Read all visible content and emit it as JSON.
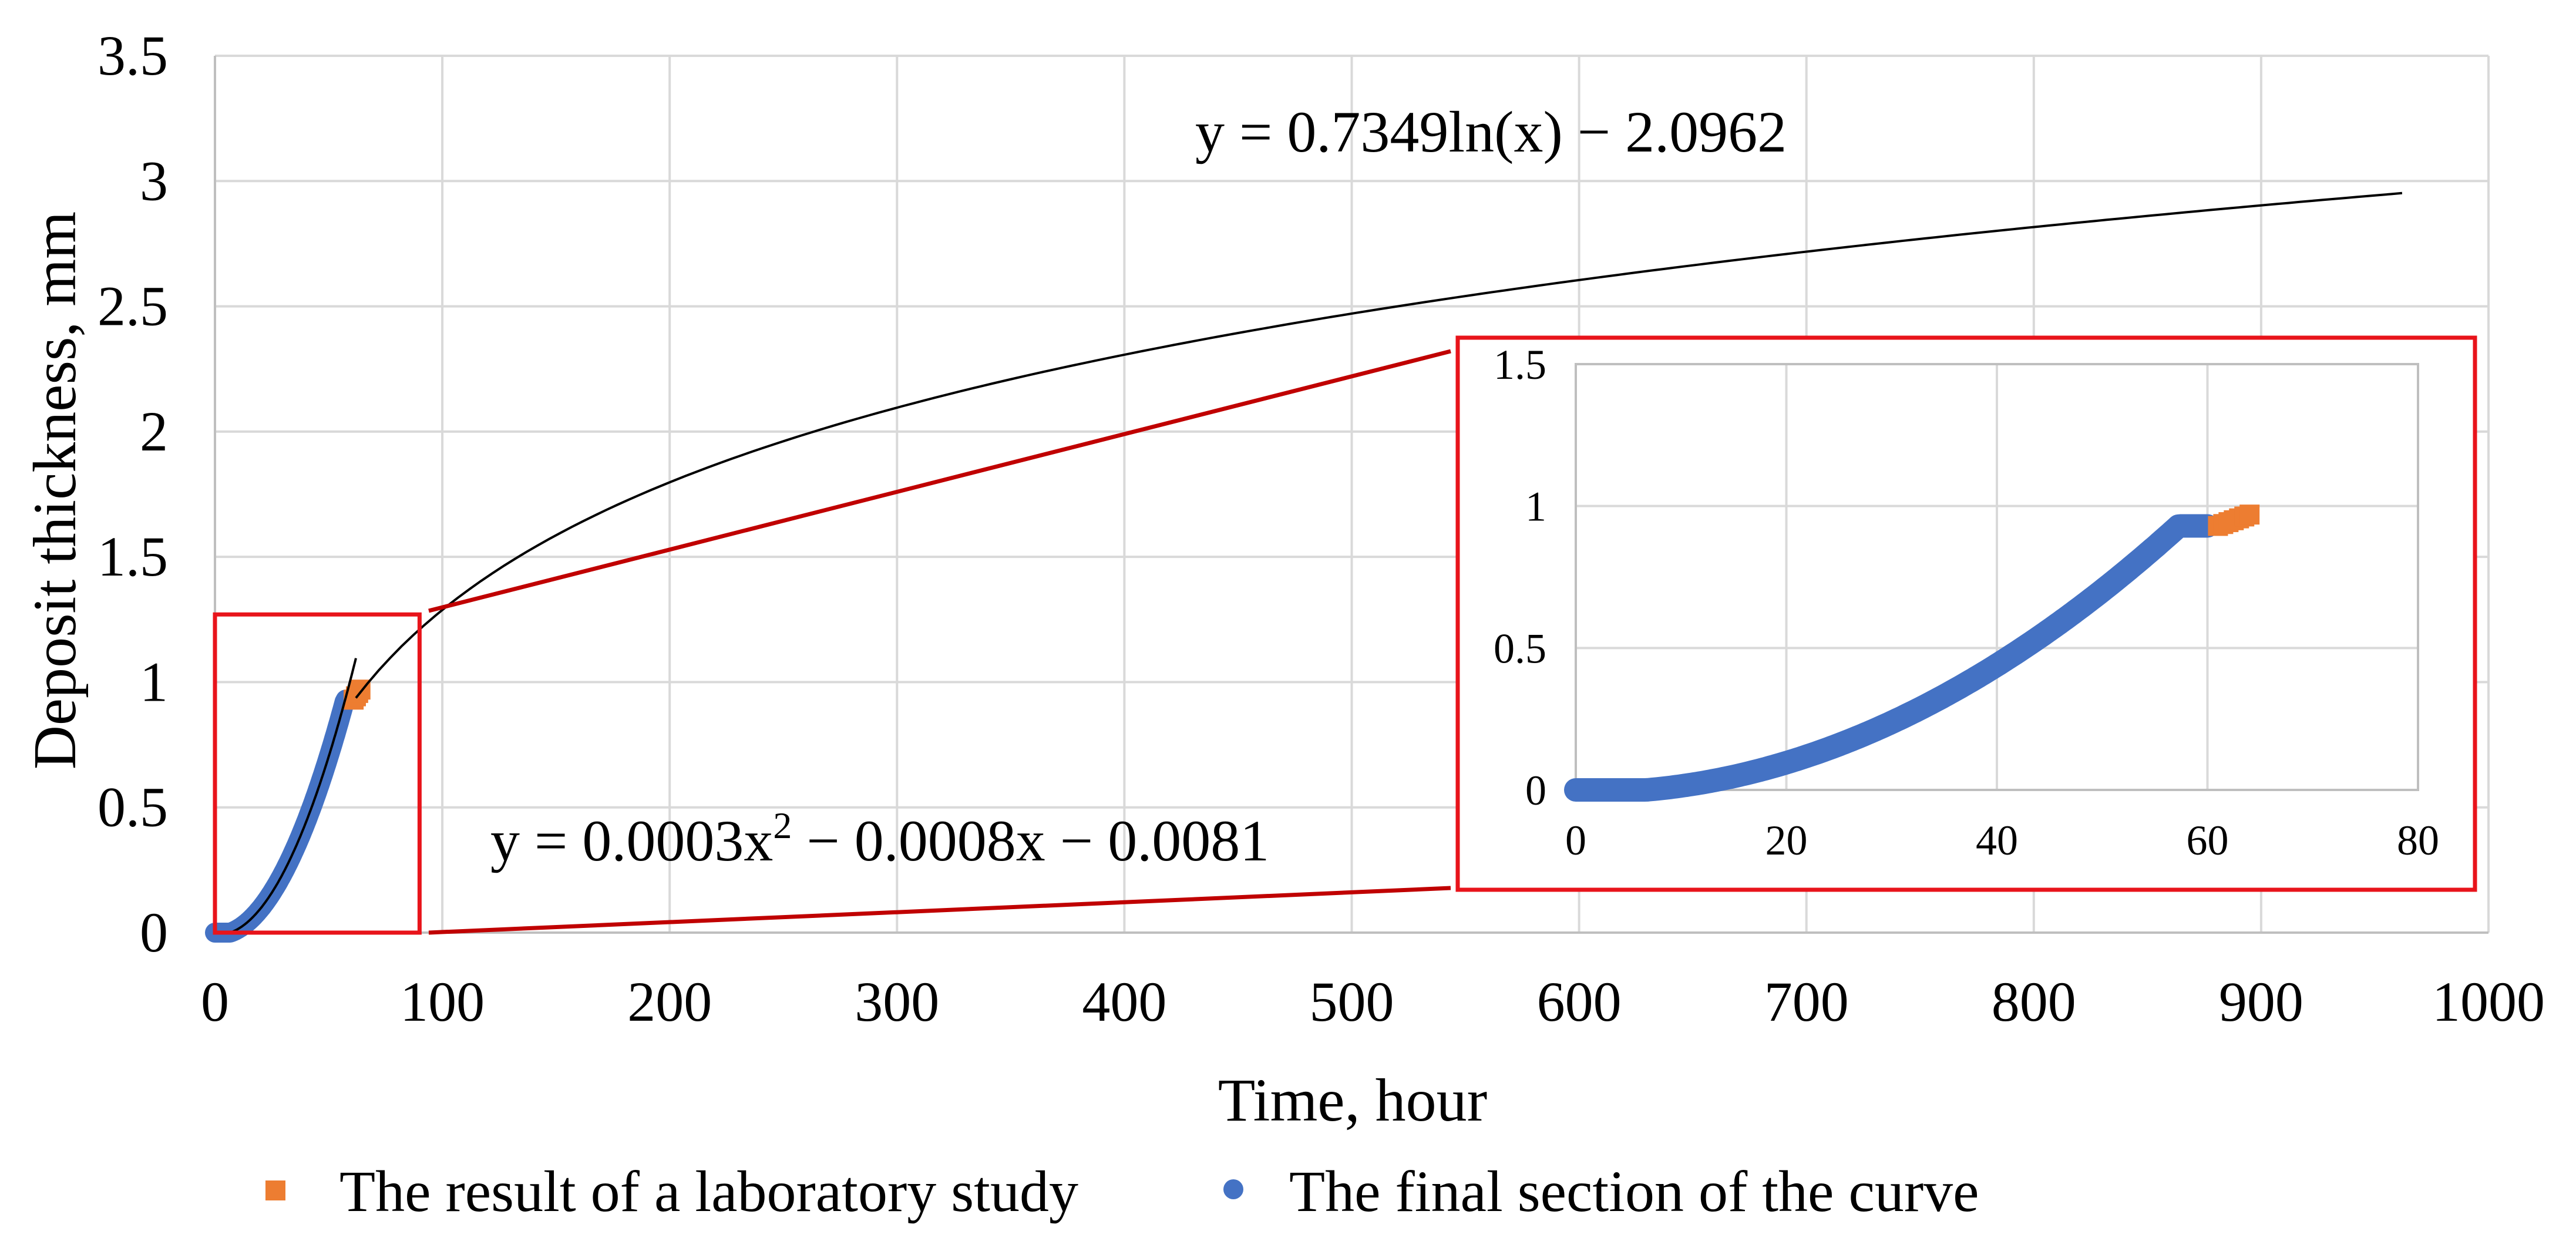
{
  "chart_data": {
    "type": "scatter",
    "title": "",
    "xlabel": "Time, hour",
    "ylabel": "Deposit thickness, mm",
    "xlim": [
      0,
      1000
    ],
    "ylim": [
      0,
      3.5
    ],
    "x_ticks": [
      0,
      100,
      200,
      300,
      400,
      500,
      600,
      700,
      800,
      900,
      1000
    ],
    "y_ticks": [
      0,
      0.5,
      1,
      1.5,
      2,
      2.5,
      3,
      3.5
    ],
    "grid": true,
    "legend_position": "bottom",
    "series": [
      {
        "name": "The result of a laboratory study",
        "marker": "square",
        "color": "#ED7D31",
        "x_range": [
          61,
          64
        ],
        "y_range": [
          0.93,
          0.97
        ]
      },
      {
        "name": "The final section of the curve",
        "marker": "circle",
        "color": "#4472C4",
        "x_range": [
          0,
          60
        ],
        "y_range": [
          0,
          0.93
        ]
      }
    ],
    "trendlines": [
      {
        "type": "polynomial",
        "coefficients": [
          0.0003,
          -0.0008,
          -0.0081
        ],
        "x_range": [
          0,
          62
        ],
        "label": "y = 0.0003x² − 0.0008x − 0.0081",
        "label_parts": {
          "prefix": "y = 0.0003x",
          "superscript": "2",
          "suffix": " − 0.0008x − 0.0081"
        }
      },
      {
        "type": "logarithmic",
        "coefficients": [
          0.7349,
          -2.0962
        ],
        "x_range": [
          62,
          965
        ],
        "label": "y = 0.7349ln(x) − 2.0962"
      }
    ],
    "inset": {
      "xlim": [
        0,
        80
      ],
      "ylim": [
        0,
        1.5
      ],
      "x_ticks": [
        0,
        20,
        40,
        60,
        80
      ],
      "y_ticks": [
        0,
        0.5,
        1,
        1.5
      ],
      "grid": true,
      "zoom_region": {
        "x": [
          0,
          90
        ],
        "y": [
          0,
          1.27
        ]
      }
    }
  },
  "colors": {
    "highlight_box": "#E8141B",
    "connector": "#C00000",
    "grid": "#D9D9D9",
    "axis": "#BFBFBF",
    "trendline": "#000000"
  }
}
